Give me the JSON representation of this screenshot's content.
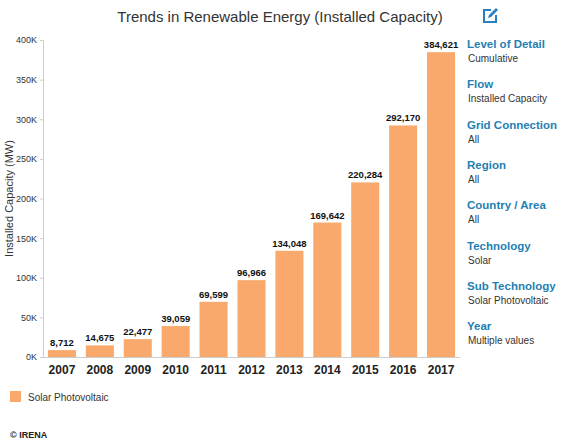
{
  "chart_data": {
    "type": "bar",
    "title": "Trends in Renewable Energy (Installed Capacity)",
    "y_label": "Installed Capacity (MW)",
    "categories": [
      "2007",
      "2008",
      "2009",
      "2010",
      "2011",
      "2012",
      "2013",
      "2014",
      "2015",
      "2016",
      "2017"
    ],
    "series": [
      {
        "name": "Solar Photovoltaic",
        "color": "#f9a96b",
        "values": [
          8712,
          14675,
          22477,
          39059,
          69599,
          96966,
          134048,
          169642,
          220284,
          292170,
          384621
        ],
        "value_labels": [
          "8,712",
          "14,675",
          "22,477",
          "39,059",
          "69,599",
          "96,966",
          "134,048",
          "169,642",
          "220,284",
          "292,170",
          "384,621"
        ]
      }
    ],
    "ylim": [
      0,
      400000
    ],
    "yticks": [
      {
        "value": 0,
        "label": "0K"
      },
      {
        "value": 50000,
        "label": "50K"
      },
      {
        "value": 100000,
        "label": "100K"
      },
      {
        "value": 150000,
        "label": "150K"
      },
      {
        "value": 200000,
        "label": "200K"
      },
      {
        "value": 250000,
        "label": "250K"
      },
      {
        "value": 300000,
        "label": "300K"
      },
      {
        "value": 350000,
        "label": "350K"
      },
      {
        "value": 400000,
        "label": "400K"
      }
    ],
    "grid": false,
    "data_labels": true,
    "legend": "bottom",
    "annotations": [
      {
        "label": "Level of Detail",
        "text": "Cumulative"
      },
      {
        "label": "Flow",
        "text": "Installed Capacity"
      },
      {
        "label": "Grid Connection",
        "text": "All"
      },
      {
        "label": "Region",
        "text": "All"
      },
      {
        "label": "Country / Area",
        "text": "All"
      },
      {
        "label": "Technology",
        "text": "Solar"
      },
      {
        "label": "Sub Technology",
        "text": "Solar Photovoltaic"
      },
      {
        "label": "Year",
        "text": "Multiple values"
      }
    ],
    "source": "© IRENA"
  }
}
